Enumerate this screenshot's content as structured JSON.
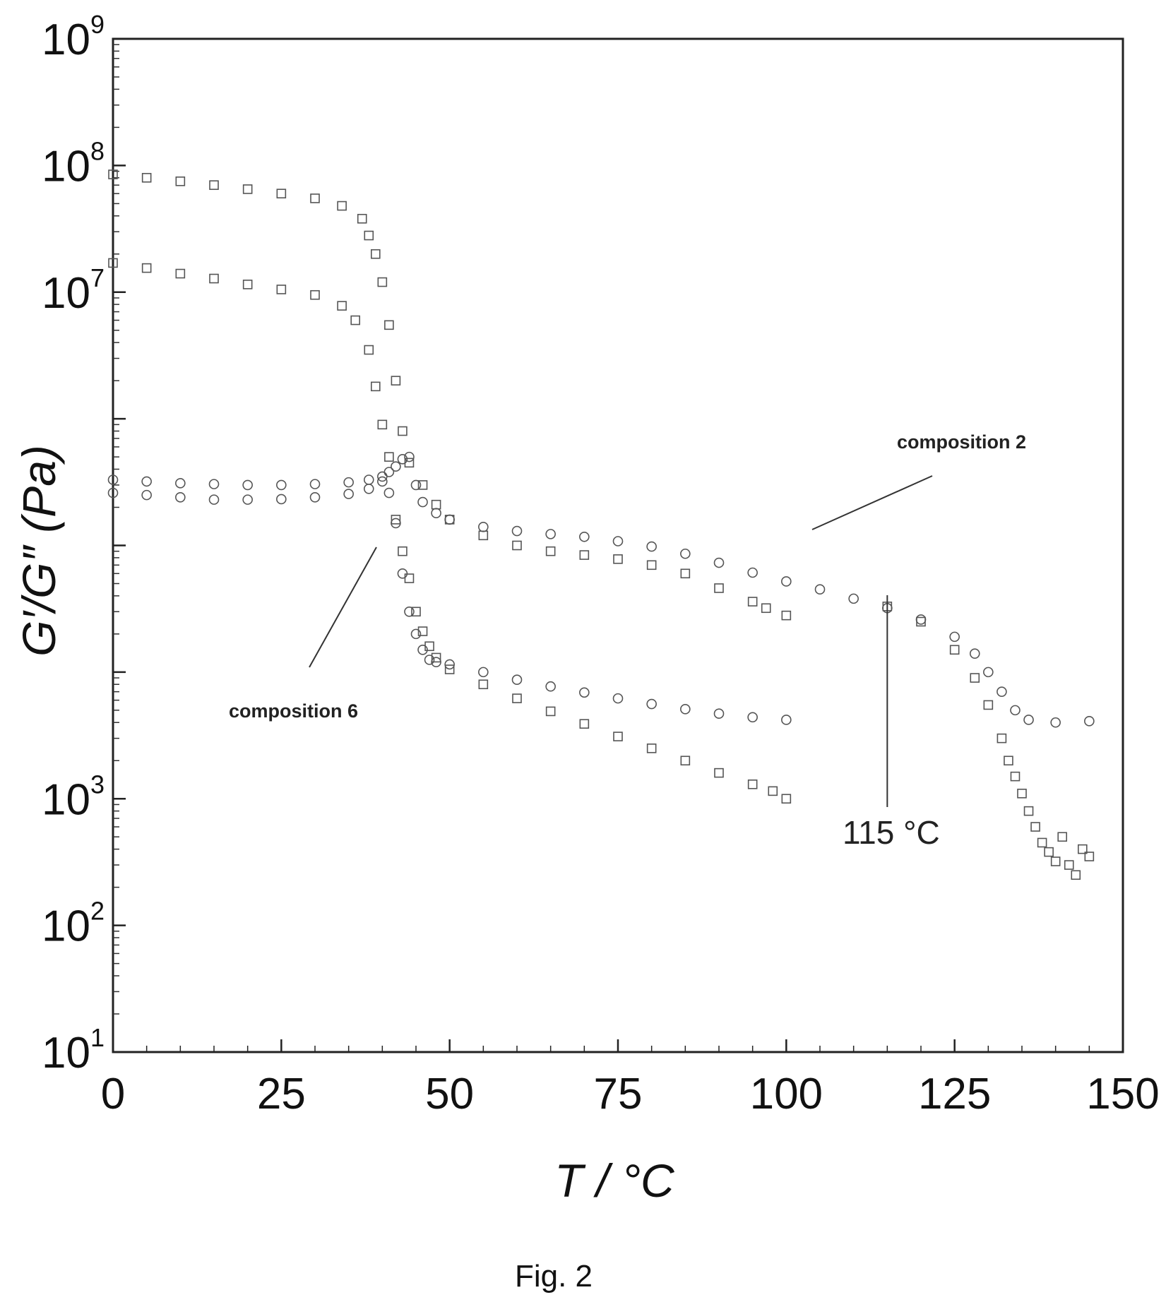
{
  "caption": "Fig. 2",
  "chart_data": {
    "type": "scatter",
    "xlabel": "T / °C",
    "ylabel": "G′/G″ (Pa)",
    "xlim": [
      0,
      150
    ],
    "ylim": [
      10,
      1000000000
    ],
    "yscale": "log",
    "x_ticks": [
      "0",
      "25",
      "50",
      "75",
      "100",
      "125",
      "150"
    ],
    "y_ticks_labelled": [
      {
        "base": "10",
        "exp": "9"
      },
      {
        "base": "10",
        "exp": "8"
      },
      {
        "base": "10",
        "exp": "7"
      },
      {
        "base": "10",
        "exp": "3"
      },
      {
        "base": "10",
        "exp": "2"
      },
      {
        "base": "10",
        "exp": "1"
      }
    ],
    "grid": false,
    "legend": "none",
    "annotations": [
      {
        "text": "composition 2"
      },
      {
        "text": "composition 6"
      },
      {
        "text": "115 °C",
        "x": 115
      }
    ],
    "series": [
      {
        "marker": "square",
        "points": [
          [
            0,
            85000000
          ],
          [
            5,
            80000000
          ],
          [
            10,
            75000000
          ],
          [
            15,
            70000000
          ],
          [
            20,
            65000000
          ],
          [
            25,
            60000000
          ],
          [
            30,
            55000000
          ],
          [
            34,
            48000000
          ],
          [
            37,
            38000000
          ],
          [
            38,
            28000000
          ],
          [
            39,
            20000000
          ],
          [
            40,
            12000000
          ],
          [
            41,
            5500000
          ],
          [
            42,
            2000000
          ],
          [
            43,
            800000
          ],
          [
            44,
            450000
          ],
          [
            46,
            300000
          ],
          [
            48,
            210000
          ],
          [
            50,
            160000
          ],
          [
            55,
            120000
          ],
          [
            60,
            100000
          ],
          [
            65,
            90000
          ],
          [
            70,
            84000
          ],
          [
            75,
            78000
          ],
          [
            80,
            70000
          ],
          [
            85,
            60000
          ],
          [
            90,
            46000
          ],
          [
            95,
            36000
          ],
          [
            97,
            32000
          ],
          [
            100,
            28000
          ]
        ]
      },
      {
        "marker": "circle",
        "points": [
          [
            0,
            260000
          ],
          [
            5,
            250000
          ],
          [
            10,
            240000
          ],
          [
            15,
            230000
          ],
          [
            20,
            230000
          ],
          [
            25,
            232000
          ],
          [
            30,
            240000
          ],
          [
            35,
            255000
          ],
          [
            38,
            280000
          ],
          [
            40,
            320000
          ],
          [
            41,
            260000
          ],
          [
            42,
            150000
          ],
          [
            43,
            60000
          ],
          [
            44,
            30000
          ],
          [
            45,
            20000
          ],
          [
            46,
            15000
          ],
          [
            47,
            12500
          ],
          [
            48,
            12000
          ],
          [
            50,
            11500
          ],
          [
            55,
            10000
          ],
          [
            60,
            8700
          ],
          [
            65,
            7700
          ],
          [
            70,
            6900
          ],
          [
            75,
            6200
          ],
          [
            80,
            5600
          ],
          [
            85,
            5100
          ],
          [
            90,
            4700
          ],
          [
            95,
            4400
          ],
          [
            100,
            4200
          ]
        ]
      },
      {
        "marker": "square",
        "points": [
          [
            0,
            17000000
          ],
          [
            5,
            15500000
          ],
          [
            10,
            14000000
          ],
          [
            15,
            12800000
          ],
          [
            20,
            11500000
          ],
          [
            25,
            10500000
          ],
          [
            30,
            9500000
          ],
          [
            34,
            7800000
          ],
          [
            36,
            6000000
          ],
          [
            38,
            3500000
          ],
          [
            39,
            1800000
          ],
          [
            40,
            900000
          ],
          [
            41,
            500000
          ],
          [
            42,
            160000
          ],
          [
            43,
            90000
          ],
          [
            44,
            55000
          ],
          [
            45,
            30000
          ],
          [
            46,
            21000
          ],
          [
            47,
            16000
          ],
          [
            48,
            13000
          ],
          [
            50,
            10500
          ],
          [
            55,
            8000
          ],
          [
            60,
            6200
          ],
          [
            65,
            4900
          ],
          [
            70,
            3900
          ],
          [
            75,
            3100
          ],
          [
            80,
            2500
          ],
          [
            85,
            2000
          ],
          [
            90,
            1600
          ],
          [
            95,
            1300
          ],
          [
            98,
            1150
          ],
          [
            100,
            1000
          ]
        ]
      },
      {
        "marker": "circle",
        "points": [
          [
            0,
            330000
          ],
          [
            5,
            320000
          ],
          [
            10,
            310000
          ],
          [
            15,
            305000
          ],
          [
            20,
            300000
          ],
          [
            25,
            300000
          ],
          [
            30,
            305000
          ],
          [
            35,
            315000
          ],
          [
            38,
            330000
          ],
          [
            40,
            350000
          ],
          [
            41,
            380000
          ],
          [
            42,
            420000
          ],
          [
            43,
            480000
          ],
          [
            44,
            500000
          ],
          [
            45,
            300000
          ],
          [
            46,
            220000
          ],
          [
            48,
            180000
          ],
          [
            50,
            160000
          ],
          [
            55,
            140000
          ],
          [
            60,
            130000
          ],
          [
            65,
            123000
          ],
          [
            70,
            117000
          ],
          [
            75,
            108000
          ],
          [
            80,
            98000
          ],
          [
            85,
            86000
          ],
          [
            90,
            73000
          ],
          [
            95,
            61000
          ],
          [
            100,
            52000
          ],
          [
            105,
            45000
          ],
          [
            110,
            38000
          ],
          [
            115,
            32000
          ],
          [
            120,
            26000
          ],
          [
            125,
            19000
          ],
          [
            128,
            14000
          ],
          [
            130,
            10000
          ],
          [
            132,
            7000
          ],
          [
            134,
            5000
          ],
          [
            136,
            4200
          ],
          [
            140,
            4000
          ],
          [
            145,
            4100
          ]
        ]
      },
      {
        "marker": "square",
        "points": [
          [
            115,
            33000
          ],
          [
            120,
            25000
          ],
          [
            125,
            15000
          ],
          [
            128,
            9000
          ],
          [
            130,
            5500
          ],
          [
            132,
            3000
          ],
          [
            133,
            2000
          ],
          [
            134,
            1500
          ],
          [
            135,
            1100
          ],
          [
            136,
            800
          ],
          [
            137,
            600
          ],
          [
            138,
            450
          ],
          [
            139,
            380
          ],
          [
            140,
            320
          ],
          [
            141,
            500
          ],
          [
            142,
            300
          ],
          [
            143,
            250
          ],
          [
            144,
            400
          ],
          [
            145,
            350
          ]
        ]
      }
    ]
  }
}
